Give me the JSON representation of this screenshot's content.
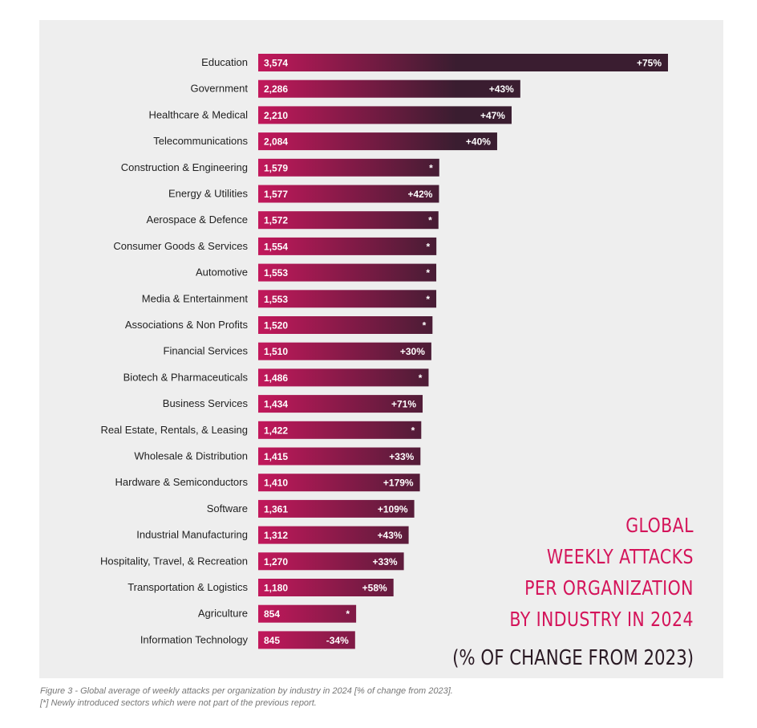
{
  "chart_data": {
    "type": "bar",
    "orientation": "horizontal",
    "title_lines": [
      "GLOBAL",
      "WEEKLY ATTACKS",
      "PER ORGANIZATION",
      "BY INDUSTRY IN 2024"
    ],
    "subtitle": "(% OF CHANGE FROM 2023)",
    "categories": [
      "Education",
      "Government",
      "Healthcare & Medical",
      "Telecommunications",
      "Construction & Engineering",
      "Energy & Utilities",
      "Aerospace & Defence",
      "Consumer Goods & Services",
      "Automotive",
      "Media & Entertainment",
      "Associations & Non Profits",
      "Financial Services",
      "Biotech & Pharmaceuticals",
      "Business Services",
      "Real Estate, Rentals, & Leasing",
      "Wholesale & Distribution",
      "Hardware & Semiconductors",
      "Software",
      "Industrial Manufacturing",
      "Hospitality, Travel, & Recreation",
      "Transportation & Logistics",
      "Agriculture",
      "Information Technology"
    ],
    "values": [
      3574,
      2286,
      2210,
      2084,
      1579,
      1577,
      1572,
      1554,
      1553,
      1553,
      1520,
      1510,
      1486,
      1434,
      1422,
      1415,
      1410,
      1361,
      1312,
      1270,
      1180,
      854,
      845
    ],
    "value_labels": [
      "3,574",
      "2,286",
      "2,210",
      "2,084",
      "1,579",
      "1,577",
      "1,572",
      "1,554",
      "1,553",
      "1,553",
      "1,520",
      "1,510",
      "1,486",
      "1,434",
      "1,422",
      "1,415",
      "1,410",
      "1,361",
      "1,312",
      "1,270",
      "1,180",
      "854",
      "845"
    ],
    "change_labels": [
      "+75%",
      "+43%",
      "+47%",
      "+40%",
      "*",
      "+42%",
      "*",
      "*",
      "*",
      "*",
      "*",
      "+30%",
      "*",
      "+71%",
      "*",
      "+33%",
      "+179%",
      "+109%",
      "+43%",
      "+33%",
      "+58%",
      "*",
      "-34%"
    ],
    "colors": {
      "bar_start": "#c2185b",
      "bar_end": "#3a1d30",
      "title": "#d4145a",
      "subtitle": "#2a1a24",
      "panel": "#eeeeee"
    }
  },
  "caption": {
    "line1": "Figure 3 - Global average of weekly attacks per organization by industry in 2024 [% of change from 2023].",
    "line2": "[*] Newly introduced sectors which were not part of the previous report."
  }
}
